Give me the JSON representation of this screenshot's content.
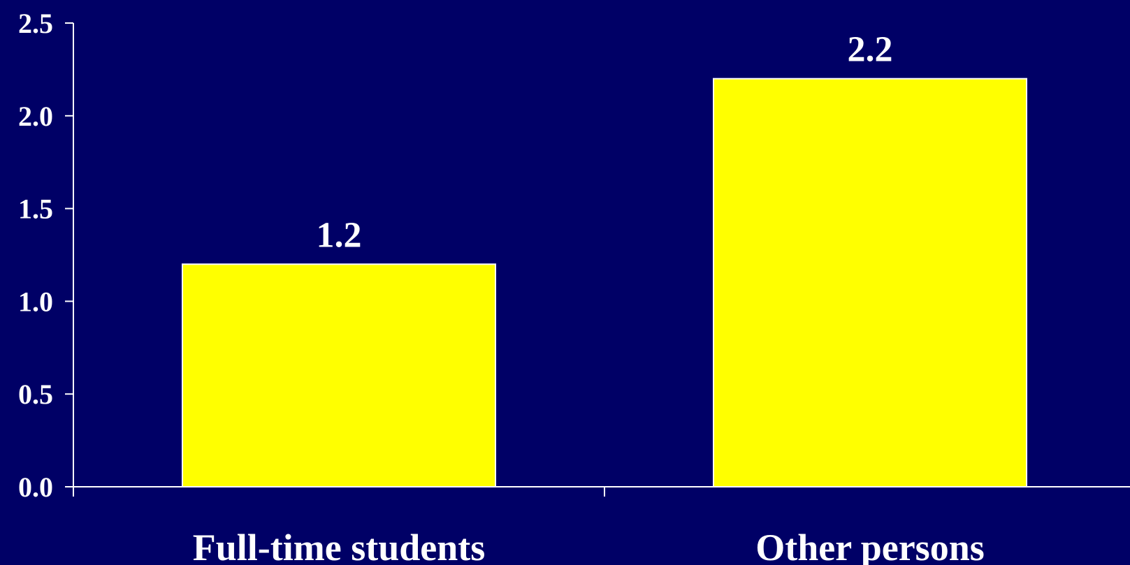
{
  "colors": {
    "background": "#000066",
    "bar": "#ffff00",
    "bar_outline": "#ffffff",
    "axis": "#ffffff",
    "text": "#ffffff"
  },
  "chart_data": {
    "type": "bar",
    "categories": [
      "Full-time students",
      "Other persons"
    ],
    "values": [
      1.2,
      2.2
    ],
    "data_labels": [
      "1.2",
      "2.2"
    ],
    "title": "",
    "xlabel": "",
    "ylabel": "",
    "ylim": [
      0,
      2.5
    ],
    "yticks": [
      0.0,
      0.5,
      1.0,
      1.5,
      2.0,
      2.5
    ],
    "ytick_labels": [
      "0.0",
      "0.5",
      "1.0",
      "1.5",
      "2.0",
      "2.5"
    ],
    "grid": false,
    "legend": "none"
  }
}
